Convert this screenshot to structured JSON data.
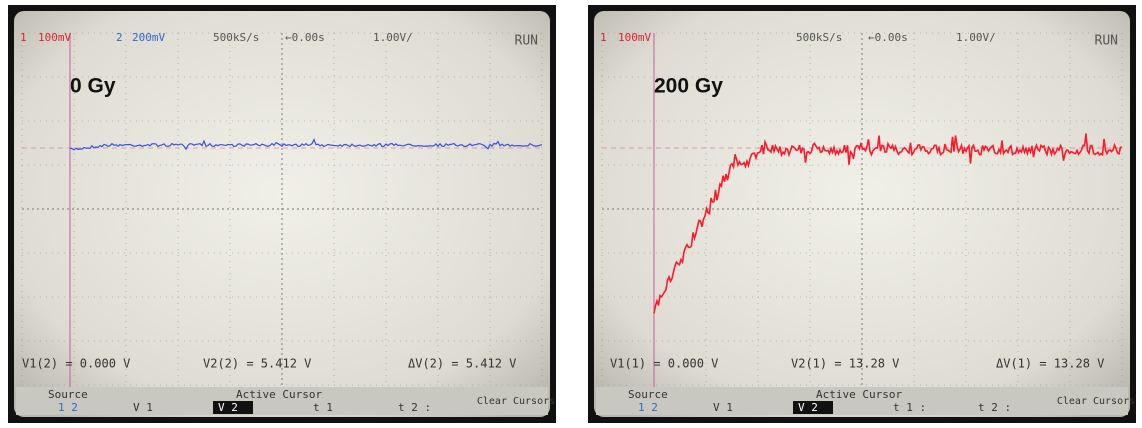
{
  "panels": [
    {
      "label": "0 Gy",
      "trace_color": "#3a4fd8",
      "status": {
        "ch1": "1",
        "ch1_scale": "100mV",
        "ch2": "2",
        "ch2_scale": "200mV",
        "rate": "500kS/s",
        "delay": "←0.00s",
        "trigger": "1.00V/",
        "mode": "RUN"
      },
      "readouts": [
        "V1(2) = 0.000 V",
        "V2(2) = 5.412 V",
        "ΔV(2) = 5.412 V"
      ],
      "softkeys": {
        "source": "Source",
        "source_channels": "1 2",
        "active_cursor": "Active Cursor",
        "v1": "V 1",
        "v2": "V 2",
        "t1": "t 1",
        "t2": "t 2 :",
        "clear": "Clear Cursors"
      }
    },
    {
      "label": "200 Gy",
      "trace_color": "#ff1a2a",
      "status": {
        "ch1": "1",
        "ch1_scale": "100mV",
        "rate": "500kS/s",
        "delay": "←0.00s",
        "trigger": "1.00V/",
        "mode": "RUN"
      },
      "readouts": [
        "V1(1) = 0.000 V",
        "V2(1) = 13.28 V",
        "ΔV(1) = 13.28 V"
      ],
      "softkeys": {
        "source": "Source",
        "source_channels": "1 2",
        "active_cursor": "Active Cursor",
        "v1": "V 1",
        "v2": "V 2",
        "t1": "t 1 :",
        "t2": "t 2 :",
        "clear": "Clear Cursors"
      }
    }
  ]
}
